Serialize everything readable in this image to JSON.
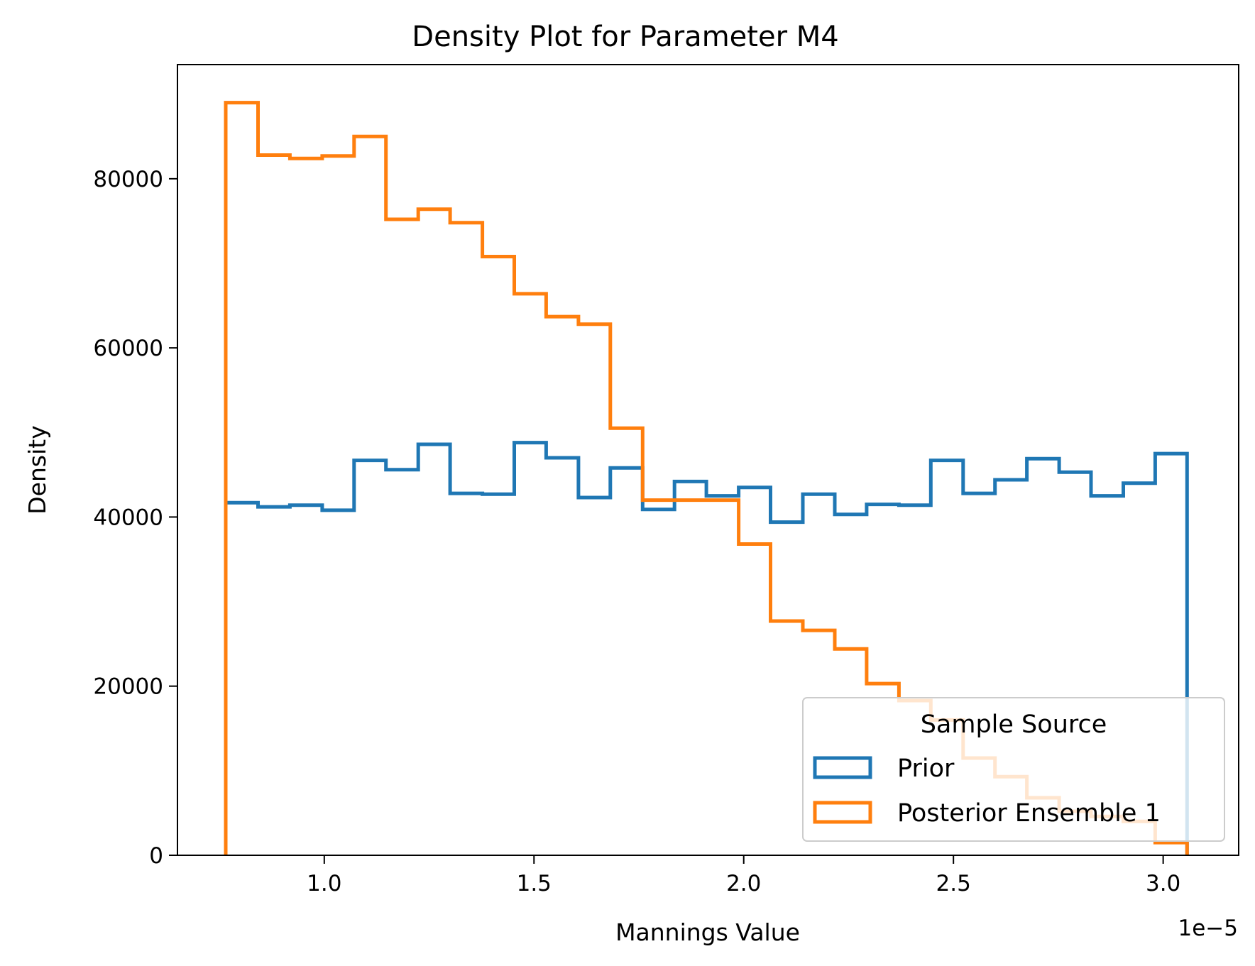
{
  "chart_data": {
    "type": "histogram-step",
    "title": "Density Plot for Parameter M4",
    "xlabel": "Mannings Value",
    "ylabel": "Density",
    "x_offset_label": "1e−5",
    "xlim": [
      0.65,
      3.18
    ],
    "ylim": [
      0,
      93500
    ],
    "x_ticks": [
      1.0,
      1.5,
      2.0,
      2.5,
      3.0
    ],
    "x_tick_labels": [
      "1.0",
      "1.5",
      "2.0",
      "2.5",
      "3.0"
    ],
    "y_ticks": [
      0,
      20000,
      40000,
      60000,
      80000
    ],
    "y_tick_labels": [
      "0",
      "20000",
      "40000",
      "60000",
      "80000"
    ],
    "grid": false,
    "legend": {
      "title": "Sample Source",
      "placement": "bottom-right"
    },
    "bin_edges": [
      0.765,
      0.842,
      0.918,
      0.995,
      1.071,
      1.147,
      1.224,
      1.3,
      1.377,
      1.453,
      1.529,
      1.606,
      1.682,
      1.759,
      1.835,
      1.911,
      1.988,
      2.064,
      2.141,
      2.217,
      2.293,
      2.37,
      2.446,
      2.523,
      2.599,
      2.675,
      2.752,
      2.828,
      2.905,
      2.981,
      3.057
    ],
    "series": [
      {
        "name": "Prior",
        "color": "#1f77b4",
        "values": [
          41700,
          41200,
          41400,
          40800,
          46700,
          45600,
          48600,
          42800,
          42700,
          48800,
          47000,
          42300,
          45800,
          40900,
          44200,
          42500,
          43500,
          39400,
          42700,
          40300,
          41500,
          41400,
          46700,
          42800,
          44400,
          46900,
          45300,
          42500,
          44000,
          47500
        ]
      },
      {
        "name": "Posterior Ensemble 1",
        "color": "#ff7f0e",
        "values": [
          89000,
          82800,
          82400,
          82700,
          85000,
          75200,
          76400,
          74800,
          70800,
          66400,
          63700,
          62800,
          50500,
          42000,
          42000,
          42000,
          36800,
          27700,
          26600,
          24400,
          20300,
          18300,
          16000,
          11500,
          9300,
          6800,
          5200,
          4600,
          4000,
          1500
        ]
      }
    ]
  }
}
